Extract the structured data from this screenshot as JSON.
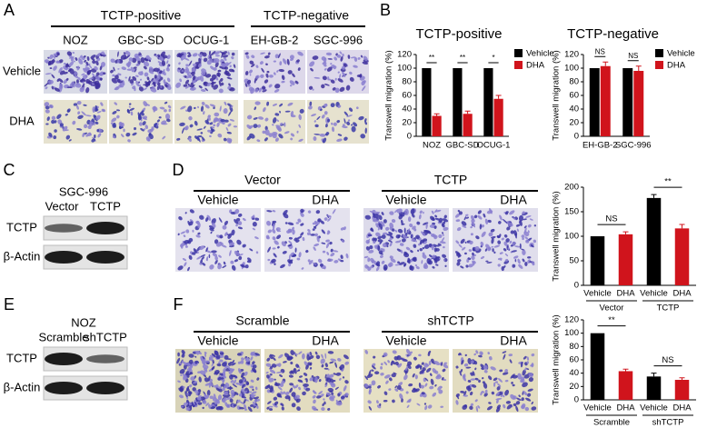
{
  "panels": {
    "A": {
      "letter": "A",
      "groups": [
        {
          "title": "TCTP-positive",
          "columns": [
            "NOZ",
            "GBC-SD",
            "OCUG-1"
          ]
        },
        {
          "title": "TCTP-negative",
          "columns": [
            "EH-GB-2",
            "SGC-996"
          ]
        }
      ],
      "rows": [
        "Vehicle",
        "DHA"
      ]
    },
    "B": {
      "letter": "B"
    },
    "C": {
      "letter": "C",
      "cell_line": "SGC-996",
      "lanes": [
        "Vector",
        "TCTP"
      ],
      "bands": [
        "TCTP",
        "β-Actin"
      ]
    },
    "D": {
      "letter": "D",
      "groups": [
        {
          "title": "Vector",
          "columns": [
            "Vehicle",
            "DHA"
          ]
        },
        {
          "title": "TCTP",
          "columns": [
            "Vehicle",
            "DHA"
          ]
        }
      ]
    },
    "E": {
      "letter": "E",
      "cell_line": "NOZ",
      "lanes": [
        "Scramble",
        "shTCTP"
      ],
      "bands": [
        "TCTP",
        "β-Actin"
      ]
    },
    "F": {
      "letter": "F",
      "groups": [
        {
          "title": "Scramble",
          "columns": [
            "Vehicle",
            "DHA"
          ]
        },
        {
          "title": "shTCTP",
          "columns": [
            "Vehicle",
            "DHA"
          ]
        }
      ]
    }
  },
  "chart_data": [
    {
      "type": "bar",
      "title": "TCTP-positive",
      "y_label": "Transwell migration (%)",
      "categories": [
        "NOZ",
        "GBC-SD",
        "OCUG-1"
      ],
      "series": [
        {
          "name": "Vehicle",
          "color": "#000000",
          "values": [
            100,
            100,
            100
          ]
        },
        {
          "name": "DHA",
          "color": "#d0141c",
          "values": [
            30,
            33,
            55
          ],
          "errors": [
            3,
            4,
            5
          ]
        }
      ],
      "ylim": [
        0,
        120
      ],
      "yticks": [
        0,
        20,
        40,
        60,
        80,
        100,
        120
      ],
      "annotations": [
        "**",
        "**",
        "*"
      ],
      "legend": "right"
    },
    {
      "type": "bar",
      "title": "TCTP-negative",
      "y_label": "Transwell migration (%)",
      "categories": [
        "EH-GB-2",
        "SGC-996"
      ],
      "series": [
        {
          "name": "Vehicle",
          "color": "#000000",
          "values": [
            100,
            100
          ]
        },
        {
          "name": "DHA",
          "color": "#d0141c",
          "values": [
            103,
            96
          ],
          "errors": [
            6,
            7
          ]
        }
      ],
      "ylim": [
        0,
        120
      ],
      "yticks": [
        0,
        20,
        40,
        60,
        80,
        100,
        120
      ],
      "annotations": [
        "NS",
        "NS"
      ],
      "legend": "right"
    },
    {
      "type": "bar",
      "y_label": "Transwell migration (%)",
      "categories": [
        "Vehicle",
        "DHA",
        "Vehicle",
        "DHA"
      ],
      "values": [
        100,
        104,
        178,
        116
      ],
      "errors": [
        null,
        5,
        7,
        8
      ],
      "colors": [
        "#000000",
        "#d0141c",
        "#000000",
        "#d0141c"
      ],
      "groups": [
        "Vector",
        "TCTP"
      ],
      "annotations": [
        "NS",
        "**"
      ],
      "ylim": [
        0,
        200
      ],
      "yticks": [
        0,
        50,
        100,
        150,
        200
      ]
    },
    {
      "type": "bar",
      "y_label": "Transwell migration (%)",
      "categories": [
        "Vehicle",
        "DHA",
        "Vehicle",
        "DHA"
      ],
      "values": [
        100,
        43,
        35,
        30
      ],
      "errors": [
        null,
        3,
        5,
        3
      ],
      "colors": [
        "#000000",
        "#d0141c",
        "#000000",
        "#d0141c"
      ],
      "groups": [
        "Scramble",
        "shTCTP"
      ],
      "annotations": [
        "**",
        "NS"
      ],
      "ylim": [
        0,
        120
      ],
      "yticks": [
        0,
        20,
        40,
        60,
        80,
        100,
        120
      ]
    }
  ]
}
